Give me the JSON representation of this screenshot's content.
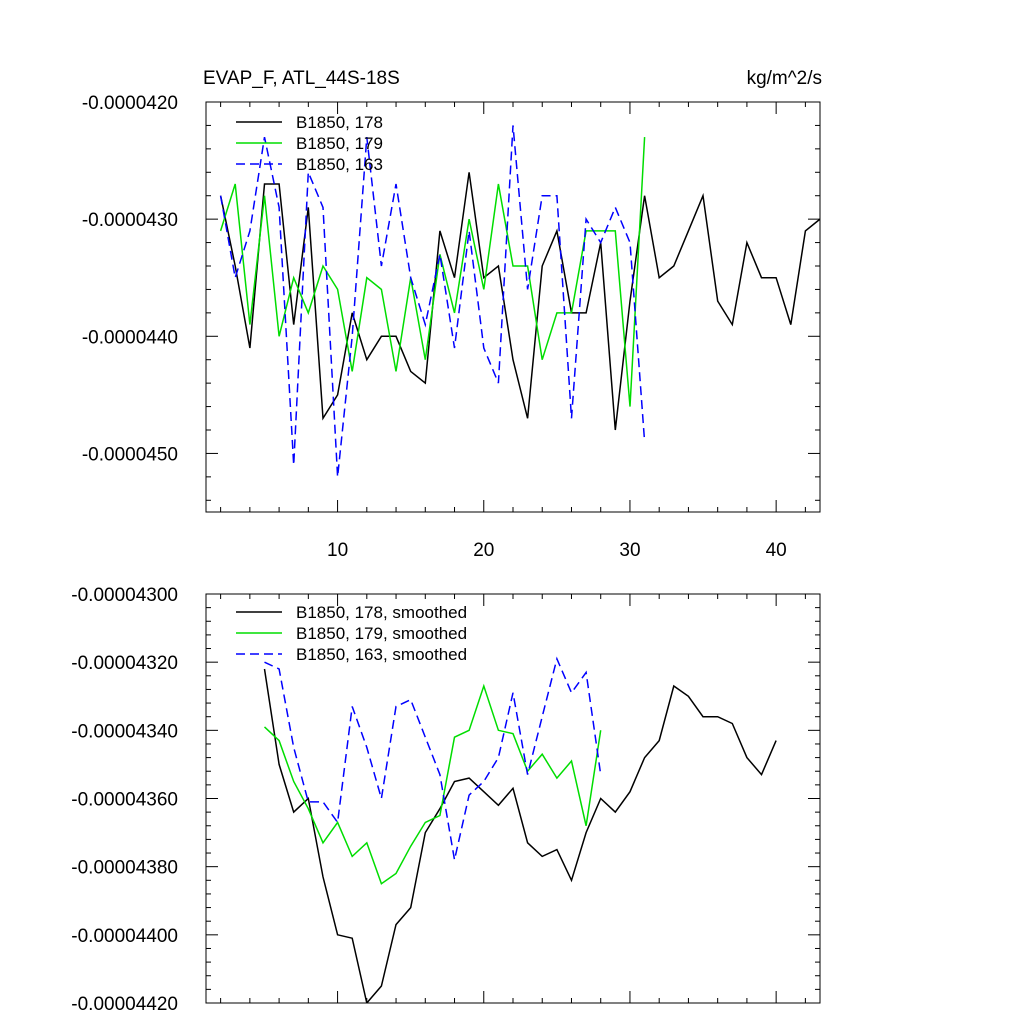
{
  "chart_data": [
    {
      "type": "line",
      "title": "EVAP_F, ATL_44S-18S",
      "units": "kg/m^2/s",
      "xlabel": "",
      "ylabel": "",
      "xlim": [
        1,
        43
      ],
      "ylim": [
        -4.55e-05,
        -4.2e-05
      ],
      "xticks": [
        10,
        20,
        30,
        40
      ],
      "xtick_labels": [
        "10",
        "20",
        "30",
        "40"
      ],
      "yticks": [
        -4.2e-05,
        -4.3e-05,
        -4.4e-05,
        -4.5e-05
      ],
      "ytick_labels": [
        "-0.0000420",
        "-0.0000430",
        "-0.0000440",
        "-0.0000450"
      ],
      "legend_location": "top-left",
      "series": [
        {
          "name": "B1850, 178",
          "color": "#000000",
          "dash": "solid",
          "x": [
            2,
            3,
            4,
            5,
            6,
            7,
            8,
            9,
            10,
            11,
            12,
            13,
            14,
            15,
            16,
            17,
            18,
            19,
            20,
            21,
            22,
            23,
            24,
            25,
            26,
            27,
            28,
            29,
            30,
            31,
            32,
            33,
            34,
            35,
            36,
            37,
            38,
            39,
            40,
            41,
            42,
            43
          ],
          "values": [
            -4.28e-05,
            -4.34e-05,
            -4.41e-05,
            -4.27e-05,
            -4.27e-05,
            -4.39e-05,
            -4.29e-05,
            -4.47e-05,
            -4.45e-05,
            -4.38e-05,
            -4.42e-05,
            -4.4e-05,
            -4.4e-05,
            -4.43e-05,
            -4.44e-05,
            -4.31e-05,
            -4.35e-05,
            -4.26e-05,
            -4.35e-05,
            -4.34e-05,
            -4.42e-05,
            -4.47e-05,
            -4.34e-05,
            -4.31e-05,
            -4.38e-05,
            -4.38e-05,
            -4.32e-05,
            -4.48e-05,
            -4.37e-05,
            -4.28e-05,
            -4.35e-05,
            -4.34e-05,
            -4.31e-05,
            -4.28e-05,
            -4.37e-05,
            -4.39e-05,
            -4.32e-05,
            -4.35e-05,
            -4.35e-05,
            -4.39e-05,
            -4.31e-05,
            -4.3e-05
          ]
        },
        {
          "name": "B1850, 179",
          "color": "#00dd00",
          "dash": "solid",
          "x": [
            2,
            3,
            4,
            5,
            6,
            7,
            8,
            9,
            10,
            11,
            12,
            13,
            14,
            15,
            16,
            17,
            18,
            19,
            20,
            21,
            22,
            23,
            24,
            25,
            26,
            27,
            28,
            29,
            30,
            31
          ],
          "values": [
            -4.31e-05,
            -4.27e-05,
            -4.39e-05,
            -4.28e-05,
            -4.4e-05,
            -4.35e-05,
            -4.38e-05,
            -4.34e-05,
            -4.36e-05,
            -4.43e-05,
            -4.35e-05,
            -4.36e-05,
            -4.43e-05,
            -4.35e-05,
            -4.42e-05,
            -4.33e-05,
            -4.38e-05,
            -4.3e-05,
            -4.36e-05,
            -4.27e-05,
            -4.34e-05,
            -4.34e-05,
            -4.42e-05,
            -4.38e-05,
            -4.38e-05,
            -4.31e-05,
            -4.31e-05,
            -4.31e-05,
            -4.46e-05,
            -4.23e-05
          ]
        },
        {
          "name": "B1850, 163",
          "color": "#0000ff",
          "dash": "dashed",
          "x": [
            2,
            3,
            4,
            5,
            6,
            7,
            8,
            9,
            10,
            11,
            12,
            13,
            14,
            15,
            16,
            17,
            18,
            19,
            20,
            21,
            22,
            23,
            24,
            25,
            26,
            27,
            28,
            29,
            30,
            31
          ],
          "values": [
            -4.28e-05,
            -4.35e-05,
            -4.31e-05,
            -4.23e-05,
            -4.29e-05,
            -4.51e-05,
            -4.26e-05,
            -4.29e-05,
            -4.52e-05,
            -4.4e-05,
            -4.23e-05,
            -4.34e-05,
            -4.27e-05,
            -4.35e-05,
            -4.39e-05,
            -4.33e-05,
            -4.41e-05,
            -4.31e-05,
            -4.41e-05,
            -4.44e-05,
            -4.22e-05,
            -4.36e-05,
            -4.28e-05,
            -4.28e-05,
            -4.47e-05,
            -4.3e-05,
            -4.32e-05,
            -4.29e-05,
            -4.32e-05,
            -4.49e-05
          ]
        }
      ]
    },
    {
      "type": "line",
      "title": "",
      "xlabel": "",
      "ylabel": "",
      "xlim": [
        1,
        43
      ],
      "ylim": [
        -4.42e-05,
        -4.3e-05
      ],
      "yticks": [
        -4.3e-05,
        -4.32e-05,
        -4.34e-05,
        -4.36e-05,
        -4.38e-05,
        -4.4e-05,
        -4.42e-05
      ],
      "ytick_labels": [
        "-0.00004300",
        "-0.00004320",
        "-0.00004340",
        "-0.00004360",
        "-0.00004380",
        "-0.00004400",
        "-0.00004420"
      ],
      "legend_location": "top-left",
      "series": [
        {
          "name": "B1850, 178, smoothed",
          "color": "#000000",
          "dash": "solid",
          "x": [
            5,
            6,
            7,
            8,
            9,
            10,
            11,
            12,
            13,
            14,
            15,
            16,
            17,
            18,
            19,
            20,
            21,
            22,
            23,
            24,
            25,
            26,
            27,
            28,
            29,
            30,
            31,
            32,
            33,
            34,
            35,
            36,
            37,
            38,
            39,
            40
          ],
          "values": [
            -4.322e-05,
            -4.35e-05,
            -4.364e-05,
            -4.36e-05,
            -4.383e-05,
            -4.4e-05,
            -4.401e-05,
            -4.42e-05,
            -4.415e-05,
            -4.397e-05,
            -4.392e-05,
            -4.37e-05,
            -4.363e-05,
            -4.355e-05,
            -4.354e-05,
            -4.358e-05,
            -4.362e-05,
            -4.357e-05,
            -4.373e-05,
            -4.377e-05,
            -4.375e-05,
            -4.384e-05,
            -4.37e-05,
            -4.36e-05,
            -4.364e-05,
            -4.358e-05,
            -4.348e-05,
            -4.343e-05,
            -4.327e-05,
            -4.33e-05,
            -4.336e-05,
            -4.336e-05,
            -4.338e-05,
            -4.348e-05,
            -4.353e-05,
            -4.343e-05
          ]
        },
        {
          "name": "B1850, 179, smoothed",
          "color": "#00dd00",
          "dash": "solid",
          "x": [
            5,
            6,
            7,
            8,
            9,
            10,
            11,
            12,
            13,
            14,
            15,
            16,
            17,
            18,
            19,
            20,
            21,
            22,
            23,
            24,
            25,
            26,
            27,
            28
          ],
          "values": [
            -4.339e-05,
            -4.343e-05,
            -4.355e-05,
            -4.363e-05,
            -4.373e-05,
            -4.367e-05,
            -4.377e-05,
            -4.373e-05,
            -4.385e-05,
            -4.382e-05,
            -4.374e-05,
            -4.367e-05,
            -4.365e-05,
            -4.342e-05,
            -4.34e-05,
            -4.327e-05,
            -4.34e-05,
            -4.341e-05,
            -4.352e-05,
            -4.347e-05,
            -4.354e-05,
            -4.349e-05,
            -4.368e-05,
            -4.34e-05
          ]
        },
        {
          "name": "B1850, 163, smoothed",
          "color": "#0000ff",
          "dash": "dashed",
          "x": [
            5,
            6,
            7,
            8,
            9,
            10,
            11,
            12,
            13,
            14,
            15,
            16,
            17,
            18,
            19,
            20,
            21,
            22,
            23,
            24,
            25,
            26,
            27,
            28
          ],
          "values": [
            -4.32e-05,
            -4.322e-05,
            -4.345e-05,
            -4.361e-05,
            -4.361e-05,
            -4.367e-05,
            -4.333e-05,
            -4.345e-05,
            -4.36e-05,
            -4.333e-05,
            -4.331e-05,
            -4.342e-05,
            -4.353e-05,
            -4.378e-05,
            -4.359e-05,
            -4.355e-05,
            -4.348e-05,
            -4.329e-05,
            -4.353e-05,
            -4.336e-05,
            -4.319e-05,
            -4.329e-05,
            -4.323e-05,
            -4.353e-05
          ]
        }
      ]
    }
  ]
}
